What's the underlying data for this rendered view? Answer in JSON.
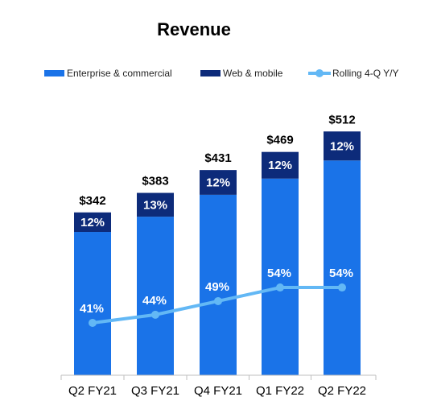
{
  "chart_data": {
    "type": "bar",
    "title": "Revenue",
    "categories": [
      "Q2 FY21",
      "Q3 FY21",
      "Q4 FY21",
      "Q1 FY22",
      "Q2 FY22"
    ],
    "totals": [
      342,
      383,
      431,
      469,
      512
    ],
    "total_labels": [
      "$342",
      "$383",
      "$431",
      "$469",
      "$512"
    ],
    "series": [
      {
        "name": "Enterprise & commercial",
        "type": "bar",
        "stack": "revenue",
        "color": "#1a73e8",
        "values": [
          301,
          333,
          379,
          413,
          451
        ]
      },
      {
        "name": "Web & mobile",
        "type": "bar",
        "stack": "revenue",
        "color": "#0d2b7a",
        "values": [
          41,
          50,
          52,
          56,
          61
        ],
        "labels": [
          "12%",
          "13%",
          "12%",
          "12%",
          "12%"
        ]
      },
      {
        "name": "Rolling 4-Q Y/Y",
        "type": "line",
        "color": "#63b8f5",
        "values": [
          41,
          44,
          49,
          54,
          54
        ],
        "labels": [
          "41%",
          "44%",
          "49%",
          "54%",
          "54%"
        ]
      }
    ],
    "ylim": [
      0,
      560
    ],
    "legend_position": "top",
    "grid": false
  }
}
